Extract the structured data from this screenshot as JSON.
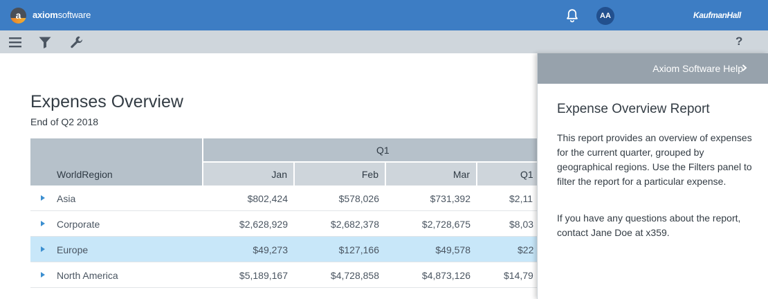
{
  "header": {
    "logo_letter": "a",
    "brand_bold": "axiom",
    "brand_rest": "software",
    "avatar_initials": "AA",
    "partner_logo": "KaufmanHall",
    "accent": "#3d7dc4"
  },
  "toolbar": {
    "icons": [
      "menu-icon",
      "filter-icon",
      "wrench-icon"
    ],
    "help_label": "?"
  },
  "report": {
    "title": "Expenses Overview",
    "subtitle": "End of Q2 2018"
  },
  "table": {
    "group_header": "Q1",
    "region_header": "WorldRegion",
    "columns": [
      "Jan",
      "Feb",
      "Mar",
      "Q1"
    ],
    "rows": [
      {
        "region": "Asia",
        "values": [
          "$802,424",
          "$578,026",
          "$731,392",
          "$2,11"
        ]
      },
      {
        "region": "Corporate",
        "values": [
          "$2,628,929",
          "$2,682,378",
          "$2,728,675",
          "$8,03"
        ]
      },
      {
        "region": "Europe",
        "values": [
          "$49,273",
          "$127,166",
          "$49,578",
          "$22"
        ]
      },
      {
        "region": "North America",
        "values": [
          "$5,189,167",
          "$4,728,858",
          "$4,873,126",
          "$14,79"
        ]
      }
    ],
    "selected_row": "Europe",
    "selected_color": "#c8e7f9"
  },
  "help": {
    "header": "Axiom Software Help",
    "title": "Expense Overview Report",
    "para1": "This report provides an overview of expenses for the current quarter, grouped by geographical regions. Use the Filters panel to filter the report for a particular expense.",
    "para2": "If you have any questions about the report, contact Jane Doe at x359."
  }
}
